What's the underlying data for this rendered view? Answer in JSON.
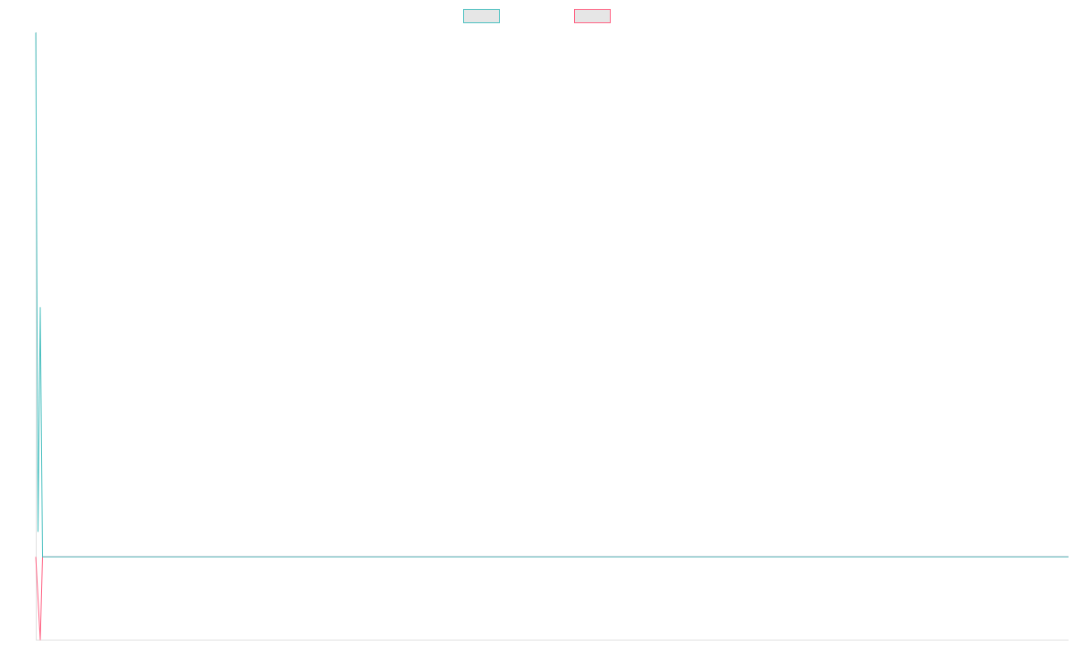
{
  "chart_data": {
    "type": "line",
    "x": [
      0,
      1,
      2,
      3,
      460
    ],
    "xlim": [
      0,
      460
    ],
    "ylim": [
      -100,
      630
    ],
    "series": [
      {
        "color": "#4bc0c0",
        "values": [
          630,
          30,
          300,
          0,
          0
        ]
      },
      {
        "color": "#ff6384",
        "values": [
          0,
          -50,
          -100,
          0,
          0
        ]
      }
    ],
    "legend": "top"
  }
}
